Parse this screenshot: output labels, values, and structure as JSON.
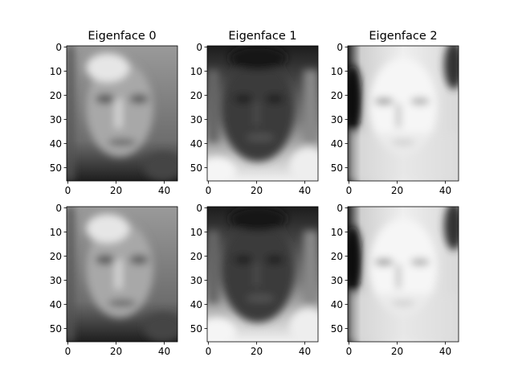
{
  "chart_data": [
    {
      "type": "image",
      "title": "Eigenface 0",
      "cmap": "gray",
      "xlim": [
        -0.5,
        45.5
      ],
      "ylim": [
        55.5,
        -0.5
      ],
      "xticks": [
        0,
        20,
        40
      ],
      "yticks": [
        0,
        10,
        20,
        30,
        40,
        50
      ]
    },
    {
      "type": "image",
      "title": "Eigenface 1",
      "cmap": "gray",
      "xlim": [
        -0.5,
        45.5
      ],
      "ylim": [
        55.5,
        -0.5
      ],
      "xticks": [
        0,
        20,
        40
      ],
      "yticks": [
        0,
        10,
        20,
        30,
        40,
        50
      ]
    },
    {
      "type": "image",
      "title": "Eigenface 2",
      "cmap": "gray",
      "xlim": [
        -0.5,
        45.5
      ],
      "ylim": [
        55.5,
        -0.5
      ],
      "xticks": [
        0,
        20,
        40
      ],
      "yticks": [
        0,
        10,
        20,
        30,
        40,
        50
      ]
    },
    {
      "type": "image",
      "cmap": "gray",
      "xlim": [
        -0.5,
        45.5
      ],
      "ylim": [
        55.5,
        -0.5
      ],
      "xticks": [
        0,
        20,
        40
      ],
      "yticks": [
        0,
        10,
        20,
        30,
        40,
        50
      ]
    },
    {
      "type": "image",
      "cmap": "gray",
      "xlim": [
        -0.5,
        45.5
      ],
      "ylim": [
        55.5,
        -0.5
      ],
      "xticks": [
        0,
        20,
        40
      ],
      "yticks": [
        0,
        10,
        20,
        30,
        40,
        50
      ]
    },
    {
      "type": "image",
      "cmap": "gray",
      "xlim": [
        -0.5,
        45.5
      ],
      "ylim": [
        55.5,
        -0.5
      ],
      "xticks": [
        0,
        20,
        40
      ],
      "yticks": [
        0,
        10,
        20,
        30,
        40,
        50
      ]
    }
  ]
}
